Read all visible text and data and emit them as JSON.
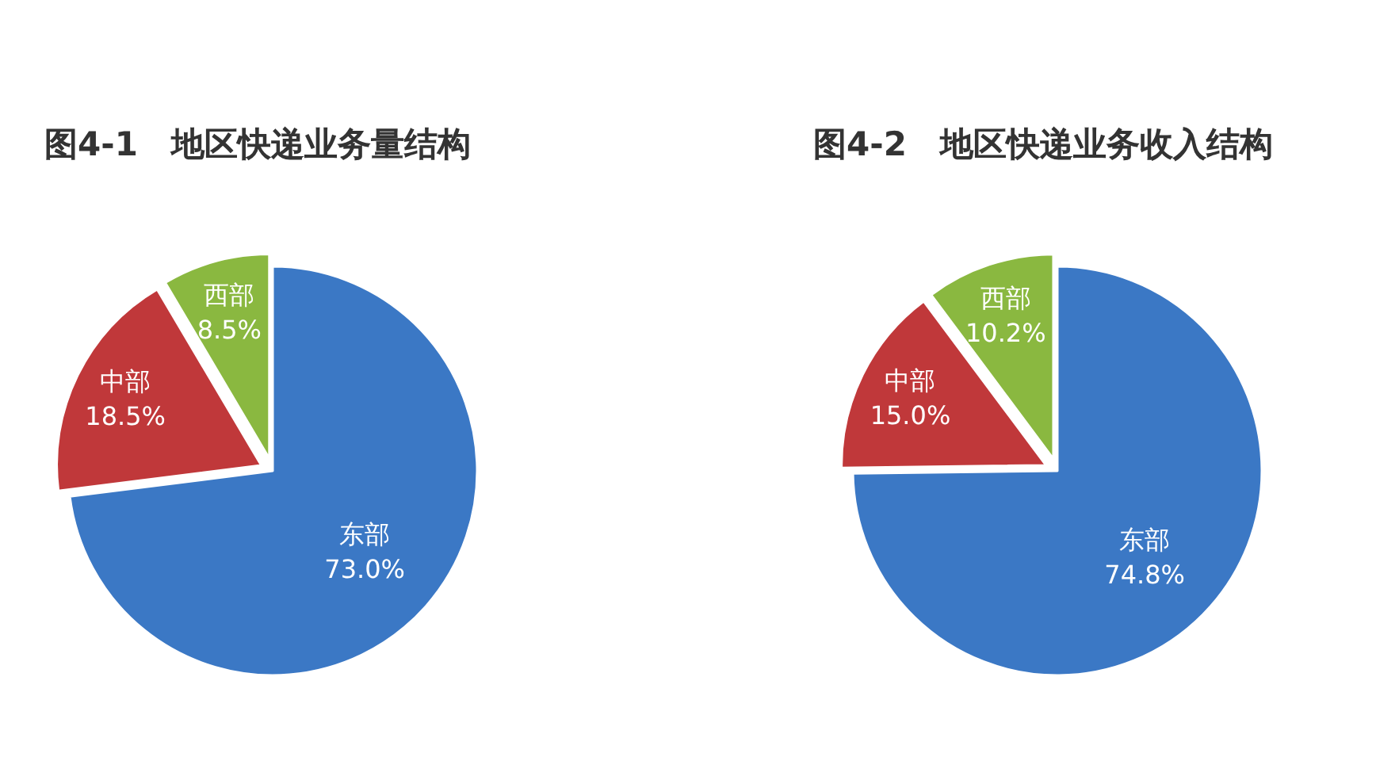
{
  "chart_data": [
    {
      "type": "pie",
      "title": "图4-1　地区快递业务量结构",
      "categories": [
        "东部",
        "中部",
        "西部"
      ],
      "values": [
        73.0,
        18.5,
        8.5
      ],
      "value_labels": [
        "73.0%",
        "18.5%",
        "8.5%"
      ],
      "colors": [
        "#3b78c5",
        "#c0383a",
        "#8ab840"
      ]
    },
    {
      "type": "pie",
      "title": "图4-2　地区快递业务收入结构",
      "categories": [
        "东部",
        "中部",
        "西部"
      ],
      "values": [
        74.8,
        15.0,
        10.2
      ],
      "value_labels": [
        "74.8%",
        "15.0%",
        "10.2%"
      ],
      "colors": [
        "#3b78c5",
        "#c0383a",
        "#8ab840"
      ]
    }
  ]
}
